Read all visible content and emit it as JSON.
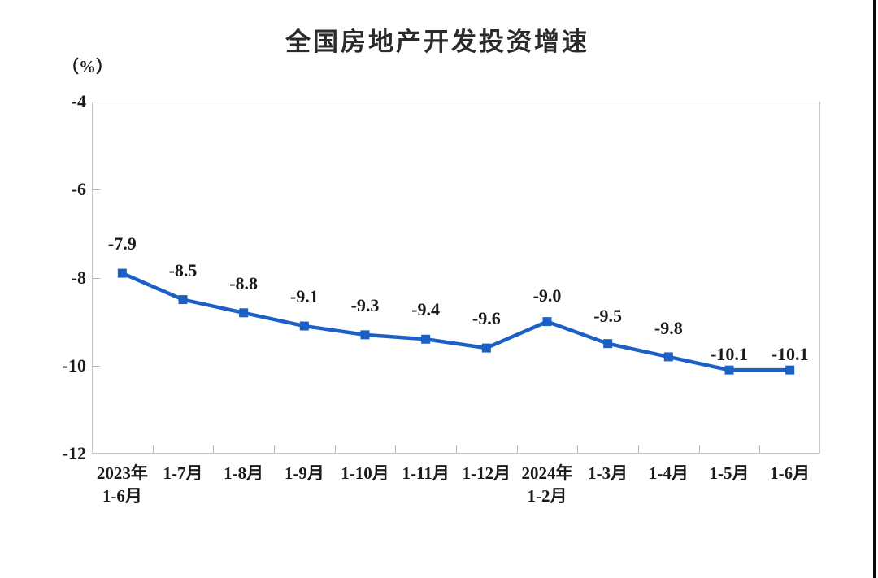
{
  "page": {
    "background_color": "#ffffff",
    "right_edge_bar_color": "#0a0a0a"
  },
  "chart_data": {
    "type": "line",
    "title": "全国房地产开发投资增速",
    "unit_label": "（%）",
    "categories": [
      "2023年\n1-6月",
      "1-7月",
      "1-8月",
      "1-9月",
      "1-10月",
      "1-11月",
      "1-12月",
      "2024年\n1-2月",
      "1-3月",
      "1-4月",
      "1-5月",
      "1-6月"
    ],
    "values": [
      -7.9,
      -8.5,
      -8.8,
      -9.1,
      -9.3,
      -9.4,
      -9.6,
      -9.0,
      -9.5,
      -9.8,
      -10.1,
      -10.1
    ],
    "data_labels": [
      "-7.9",
      "-8.5",
      "-8.8",
      "-9.1",
      "-9.3",
      "-9.4",
      "-9.6",
      "-9.0",
      "-9.5",
      "-9.8",
      "-10.1",
      "-10.1"
    ],
    "label_dy": [
      -36,
      -36,
      -36,
      -36,
      -36,
      -36,
      -36,
      -32,
      -34,
      -35,
      -19,
      -19
    ],
    "xlabel": "",
    "ylabel": "（%）",
    "y_tick_labels": [
      "-4",
      "-6",
      "-8",
      "-10",
      "-12"
    ],
    "y_tick_values": [
      -4,
      -6,
      -8,
      -10,
      -12
    ],
    "ylim": [
      -12,
      -4
    ],
    "grid": false,
    "legend": "none",
    "marker": "square",
    "line_color": "#1c60c5",
    "axis_color": "#c7c7c7",
    "tick_color": "#b5b5b5",
    "text_color": "#1a1a1a"
  }
}
